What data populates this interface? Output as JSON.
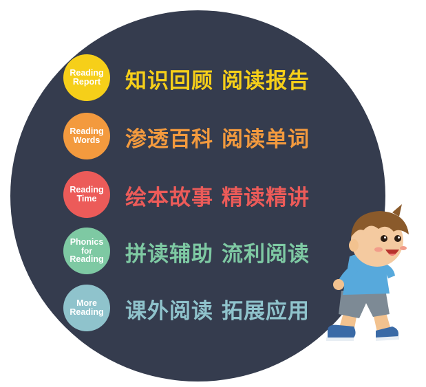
{
  "rows": [
    {
      "badge_lines": [
        "Reading",
        "Report"
      ],
      "title_a": "知识回顾",
      "title_b": "阅读报告",
      "color": "#f6cf19"
    },
    {
      "badge_lines": [
        "Reading",
        "Words"
      ],
      "title_a": "渗透百科",
      "title_b": "阅读单词",
      "color": "#f39a3e"
    },
    {
      "badge_lines": [
        "Reading",
        "Time"
      ],
      "title_a": "绘本故事",
      "title_b": "精读精讲",
      "color": "#ec5b59"
    },
    {
      "badge_lines": [
        "Phonics",
        "for",
        "Reading"
      ],
      "title_a": "拼读辅助",
      "title_b": "流利阅读",
      "color": "#7ec9a3"
    },
    {
      "badge_lines": [
        "More",
        "Reading"
      ],
      "title_a": "课外阅读",
      "title_b": "拓展应用",
      "color": "#8fc3cc"
    }
  ],
  "background_color": "#353c4e",
  "illustration": "cartoon-boy-peeking"
}
